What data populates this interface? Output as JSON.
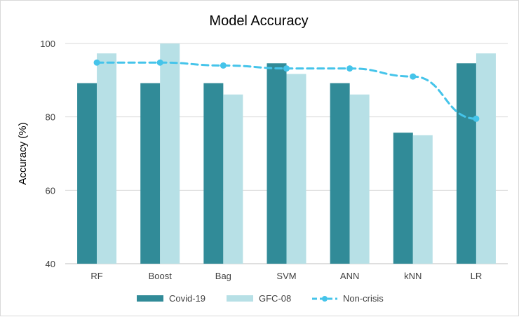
{
  "chart_data": {
    "type": "bar",
    "title": "Model Accuracy",
    "xlabel": "",
    "ylabel": "Accuracy (%)",
    "ylim": [
      40,
      100
    ],
    "yticks": [
      "40",
      "60",
      "80",
      "100"
    ],
    "categories": [
      "RF",
      "Boost",
      "Bag",
      "SVM",
      "ANN",
      "kNN",
      "LR"
    ],
    "series": [
      {
        "name": "Covid-19",
        "type": "bar",
        "color": "#318b98",
        "values": [
          89.2,
          89.2,
          89.2,
          94.6,
          89.2,
          75.7,
          94.6
        ]
      },
      {
        "name": "GFC-08",
        "type": "bar",
        "color": "#b7e0e6",
        "values": [
          97.3,
          100.0,
          86.1,
          91.7,
          86.1,
          75.0,
          97.3
        ]
      },
      {
        "name": "Non-crisis",
        "type": "line",
        "style": "dashed",
        "color": "#45c4ea",
        "values": [
          94.8,
          94.8,
          94.0,
          93.2,
          93.2,
          91.0,
          79.5
        ]
      }
    ],
    "grid": "horizontal",
    "legend": "bottom"
  }
}
